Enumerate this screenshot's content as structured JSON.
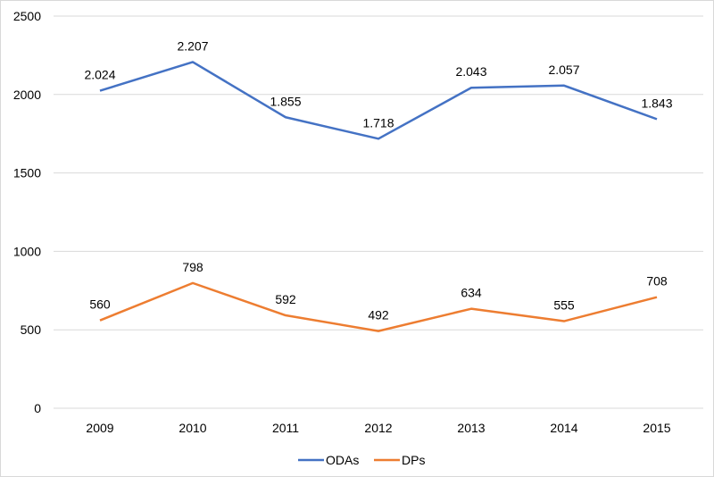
{
  "chart_data": {
    "type": "line",
    "title": "",
    "xlabel": "",
    "ylabel": "",
    "categories": [
      "2009",
      "2010",
      "2011",
      "2012",
      "2013",
      "2014",
      "2015"
    ],
    "ylim": [
      0,
      2500
    ],
    "yticks": [
      0,
      500,
      1000,
      1500,
      2000,
      2500
    ],
    "grid": "horizontal",
    "legend": "bottom",
    "series": [
      {
        "name": "ODAs",
        "color": "#4472C4",
        "values": [
          2024,
          2207,
          1855,
          1718,
          2043,
          2057,
          1843
        ],
        "labels": [
          "2.024",
          "2.207",
          "1.855",
          "1.718",
          "2.043",
          "2.057",
          "1.843"
        ]
      },
      {
        "name": "DPs",
        "color": "#ED7D31",
        "values": [
          560,
          798,
          592,
          492,
          634,
          555,
          708
        ],
        "labels": [
          "560",
          "798",
          "592",
          "492",
          "634",
          "555",
          "708"
        ]
      }
    ]
  }
}
